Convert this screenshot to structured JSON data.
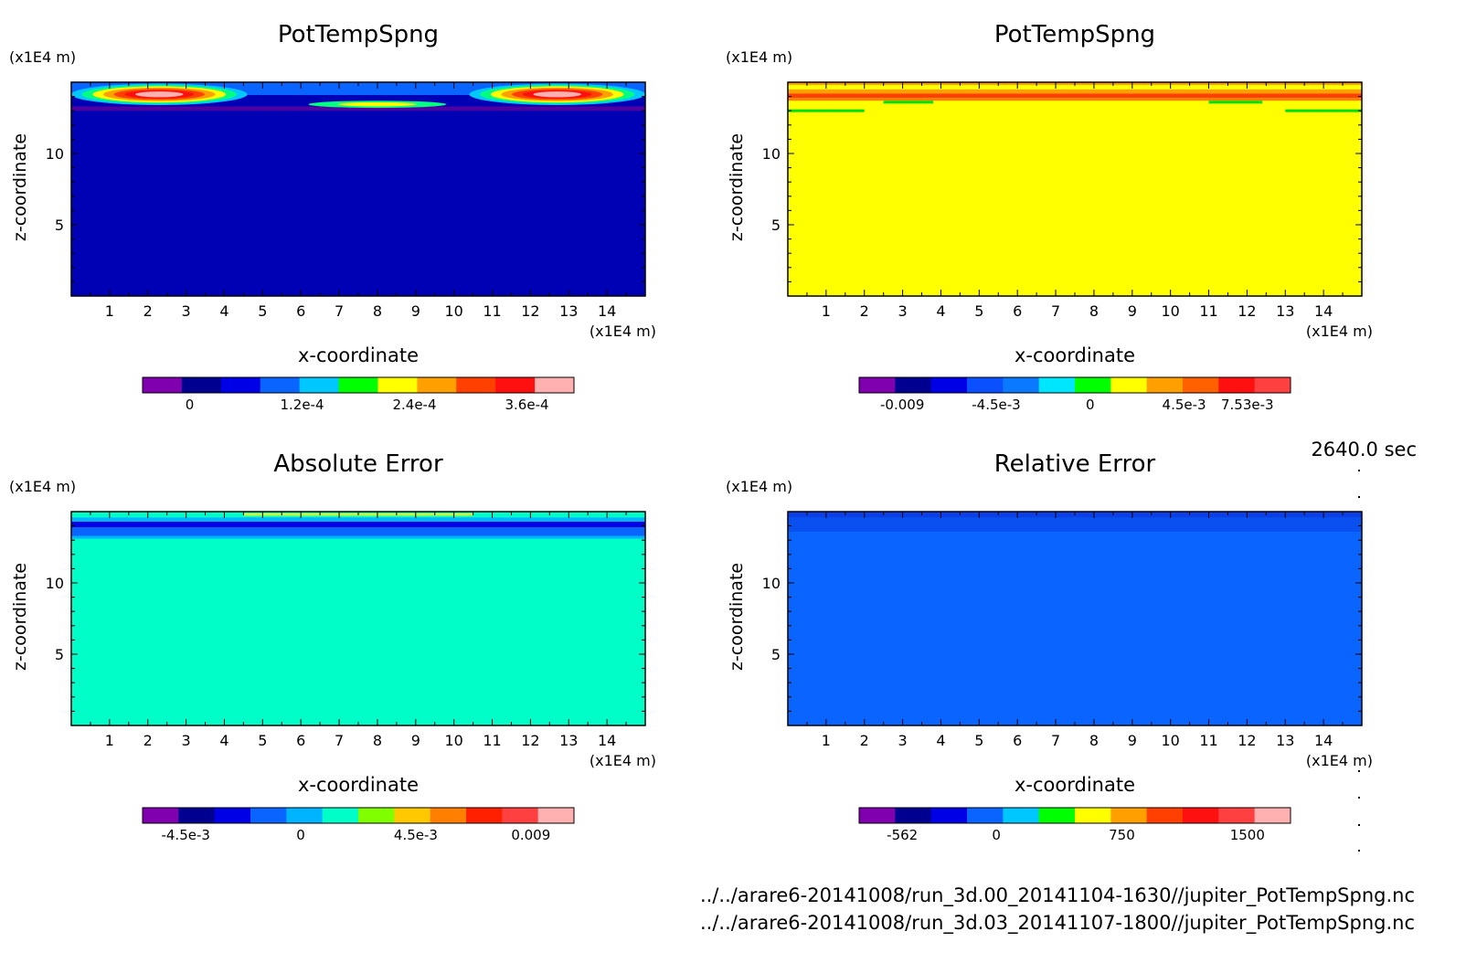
{
  "footer": {
    "time": "2640.0 sec",
    "path1": "../../arare6-20141008/run_3d.00_20141104-1630//jupiter_PotTempSpng.nc",
    "path2": "../../arare6-20141008/run_3d.03_20141107-1800//jupiter_PotTempSpng.nc"
  },
  "chart_data": [
    {
      "type": "heatmap",
      "title": "PotTempSpng",
      "xlabel": "x-coordinate",
      "ylabel": "z-coordinate",
      "x_unit": "(x1E4 m)",
      "y_unit": "(x1E4 m)",
      "xticks": [
        "1",
        "2",
        "3",
        "4",
        "5",
        "6",
        "7",
        "8",
        "9",
        "10",
        "11",
        "12",
        "13",
        "14"
      ],
      "yticks": [
        "5",
        "10"
      ],
      "xlim": [
        0,
        15
      ],
      "ylim": [
        0,
        15
      ],
      "colorbar": {
        "colors": [
          "#8000b0",
          "#000090",
          "#0000e6",
          "#0a64ff",
          "#00c8ff",
          "#00ff00",
          "#ffff00",
          "#ffa000",
          "#ff4000",
          "#ff1010",
          "#ffb0b0"
        ],
        "tick_labels": [
          "0",
          "1.2e-4",
          "2.4e-4",
          "3.6e-4"
        ],
        "tick_values": [
          0,
          0.00012,
          0.00024,
          0.00036
        ]
      },
      "field": {
        "background": "#0000b4",
        "bands": [
          {
            "z0": 14.1,
            "z1": 15.0,
            "color": "#0a64ff"
          },
          {
            "z0": 13.0,
            "z1": 13.3,
            "color": "#5000a0"
          }
        ],
        "features": [
          {
            "kind": "lobe",
            "x0": 0,
            "x1": 4.6,
            "z0": 13.4,
            "z1": 14.9,
            "colors": [
              "#00c8ff",
              "#00ff80",
              "#ffff00",
              "#ffa000",
              "#ff4000",
              "#ff1010",
              "#ffb0b0"
            ]
          },
          {
            "kind": "lobe",
            "x0": 10.4,
            "x1": 15,
            "z0": 13.4,
            "z1": 14.9,
            "colors": [
              "#00c8ff",
              "#00ff80",
              "#ffff00",
              "#ffa000",
              "#ff4000",
              "#ff1010",
              "#ffb0b0"
            ]
          },
          {
            "kind": "lobe",
            "x0": 6.2,
            "x1": 9.8,
            "z0": 13.2,
            "z1": 13.7,
            "colors": [
              "#00ff80",
              "#ffff00"
            ]
          }
        ]
      }
    },
    {
      "type": "heatmap",
      "title": "PotTempSpng",
      "xlabel": "x-coordinate",
      "ylabel": "z-coordinate",
      "x_unit": "(x1E4 m)",
      "y_unit": "(x1E4 m)",
      "xticks": [
        "1",
        "2",
        "3",
        "4",
        "5",
        "6",
        "7",
        "8",
        "9",
        "10",
        "11",
        "12",
        "13",
        "14"
      ],
      "yticks": [
        "5",
        "10"
      ],
      "xlim": [
        0,
        15
      ],
      "ylim": [
        0,
        15
      ],
      "colorbar": {
        "colors": [
          "#8000b0",
          "#000090",
          "#0000e6",
          "#0a50ff",
          "#0a78ff",
          "#00e6ff",
          "#00ff00",
          "#ffff00",
          "#ffa000",
          "#ff6000",
          "#ff1010",
          "#ff4040"
        ],
        "tick_labels": [
          "-0.009",
          "-4.5e-3",
          "0",
          "4.5e-3",
          "7.53e-3"
        ],
        "tick_values": [
          -0.009,
          -0.0045,
          0,
          0.0045,
          0.00753
        ]
      },
      "field": {
        "background": "#ffff00",
        "bands": [
          {
            "z0": 14.8,
            "z1": 15.0,
            "color": "#ffa000"
          },
          {
            "z0": 14.5,
            "z1": 14.8,
            "color": "#ffff00"
          },
          {
            "z0": 14.2,
            "z1": 14.5,
            "color": "#ffa000"
          },
          {
            "z0": 13.9,
            "z1": 14.2,
            "color": "#ff4000"
          },
          {
            "z0": 13.7,
            "z1": 13.9,
            "color": "#ff8000"
          }
        ],
        "features": [
          {
            "kind": "line",
            "x0": 0,
            "x1": 2.0,
            "z": 13.0,
            "color": "#00e000"
          },
          {
            "kind": "line",
            "x0": 13.0,
            "x1": 15,
            "z": 13.0,
            "color": "#00e000"
          },
          {
            "kind": "line",
            "x0": 2.5,
            "x1": 3.8,
            "z": 13.6,
            "color": "#00e000"
          },
          {
            "kind": "line",
            "x0": 11.0,
            "x1": 12.4,
            "z": 13.6,
            "color": "#00e000"
          }
        ]
      }
    },
    {
      "type": "heatmap",
      "title": "Absolute Error",
      "xlabel": "x-coordinate",
      "ylabel": "z-coordinate",
      "x_unit": "(x1E4 m)",
      "y_unit": "(x1E4 m)",
      "xticks": [
        "1",
        "2",
        "3",
        "4",
        "5",
        "6",
        "7",
        "8",
        "9",
        "10",
        "11",
        "12",
        "13",
        "14"
      ],
      "yticks": [
        "5",
        "10"
      ],
      "xlim": [
        0,
        15
      ],
      "ylim": [
        0,
        15
      ],
      "colorbar": {
        "colors": [
          "#8000b0",
          "#000090",
          "#0000e6",
          "#0a64ff",
          "#00b4ff",
          "#00ffc8",
          "#80ff00",
          "#ffc800",
          "#ff8000",
          "#ff2000",
          "#ff4040",
          "#ffb0b0"
        ],
        "tick_labels": [
          "-4.5e-3",
          "0",
          "4.5e-3",
          "0.009"
        ],
        "tick_values": [
          -0.0045,
          0,
          0.0045,
          0.009
        ]
      },
      "field": {
        "background": "#00ffc8",
        "bands": [
          {
            "z0": 13.1,
            "z1": 13.3,
            "color": "#00b4ff"
          },
          {
            "z0": 13.3,
            "z1": 13.9,
            "color": "#0a64ff"
          },
          {
            "z0": 13.9,
            "z1": 14.3,
            "color": "#0000e6"
          },
          {
            "z0": 14.3,
            "z1": 14.6,
            "color": "#00b4ff"
          },
          {
            "z0": 14.6,
            "z1": 15.0,
            "color": "#00ffc8"
          }
        ],
        "features": [
          {
            "kind": "line",
            "x0": 4.5,
            "x1": 10.5,
            "z": 14.8,
            "color": "#c0ff40"
          }
        ]
      }
    },
    {
      "type": "heatmap",
      "title": "Relative Error",
      "xlabel": "x-coordinate",
      "ylabel": "z-coordinate",
      "x_unit": "(x1E4 m)",
      "y_unit": "(x1E4 m)",
      "xticks": [
        "1",
        "2",
        "3",
        "4",
        "5",
        "6",
        "7",
        "8",
        "9",
        "10",
        "11",
        "12",
        "13",
        "14"
      ],
      "yticks": [
        "5",
        "10"
      ],
      "xlim": [
        0,
        15
      ],
      "ylim": [
        0,
        15
      ],
      "colorbar": {
        "colors": [
          "#8000b0",
          "#000090",
          "#0000e6",
          "#0a64ff",
          "#00c8ff",
          "#00ff00",
          "#ffff00",
          "#ffa000",
          "#ff4000",
          "#ff1010",
          "#ff4040",
          "#ffb0b0"
        ],
        "tick_labels": [
          "-562",
          "0",
          "750",
          "1500"
        ],
        "tick_values": [
          -562,
          0,
          750,
          1500
        ]
      },
      "field": {
        "background": "#0a64ff",
        "bands": [
          {
            "z0": 13.6,
            "z1": 15.0,
            "color": "#0a50f0"
          },
          {
            "z0": 14.6,
            "z1": 15.0,
            "color": "#0a40e6"
          }
        ],
        "features": []
      }
    }
  ]
}
